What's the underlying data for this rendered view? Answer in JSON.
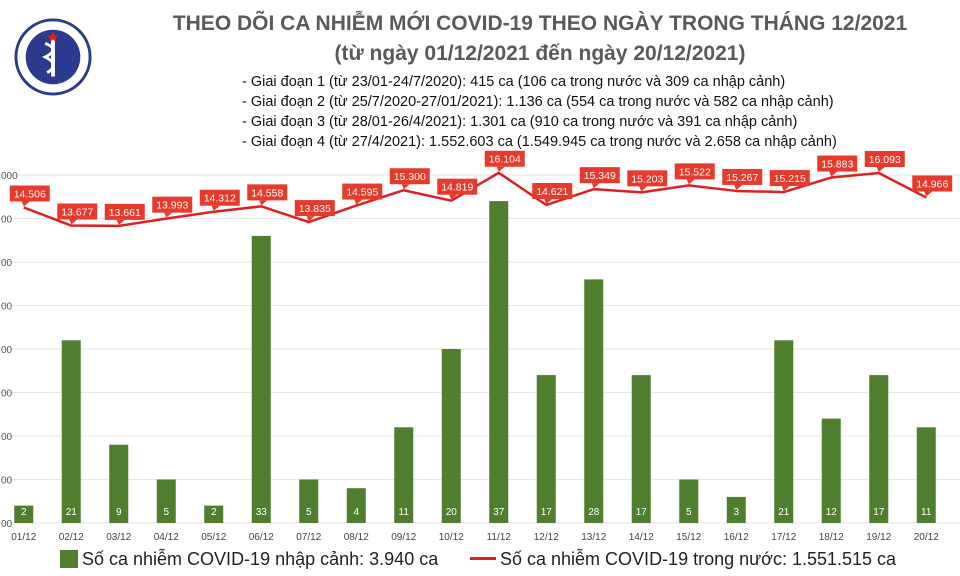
{
  "header": {
    "title": "THEO DÕI CA NHIỄM MỚI COVID-19 THEO NGÀY TRONG THÁNG 12/2021",
    "subtitle": "(từ ngày 01/12/2021 đến ngày 20/12/2021)"
  },
  "phases": [
    "- Giai đoạn 1 (từ 23/01-24/7/2020): 415 ca (106 ca trong nước và 309 ca nhập cảnh)",
    "- Giai đoạn 2 (từ 25/7/2020-27/01/2021): 1.136 ca (554 ca trong nước và 582 ca nhập cảnh)",
    "- Giai đoạn 3 (từ 28/01-26/4/2021): 1.301 ca (910 ca trong nước và 391 ca nhập cảnh)",
    "- Giai đoạn 4 (từ 27/4/2021): 1.552.603 ca (1.549.945 ca trong nước và 2.658 ca nhập cảnh)"
  ],
  "logo": {
    "text": "BỘ Y TẾ · MINISTRY OF HEALTH",
    "color": "#2b3a8c"
  },
  "legend": {
    "import_label": "Số ca nhiễm COVID-19 nhập cảnh: 3.940 ca",
    "domestic_label": "Số ca nhiễm COVID-19 trong nước: 1.551.515 ca"
  },
  "colors": {
    "bar": "#4f7f2e",
    "line": "#e02020",
    "label_box": "#e53a2c"
  },
  "chart_data": {
    "type": "bar",
    "categories": [
      "01/12",
      "02/12",
      "03/12",
      "04/12",
      "05/12",
      "06/12",
      "07/12",
      "08/12",
      "09/12",
      "10/12",
      "11/12",
      "12/12",
      "13/12",
      "14/12",
      "15/12",
      "16/12",
      "17/12",
      "18/12",
      "19/12",
      "20/12"
    ],
    "series": [
      {
        "name": "Số ca nhiễm COVID-19 nhập cảnh: 3.940 ca",
        "type": "bar",
        "values": [
          2,
          21,
          9,
          5,
          2,
          33,
          5,
          4,
          11,
          20,
          37,
          17,
          28,
          17,
          5,
          3,
          21,
          12,
          17,
          11
        ],
        "labels": [
          "2",
          "21",
          "9",
          "5",
          "2",
          "33",
          "5",
          "4",
          "11",
          "20",
          "37",
          "17",
          "28",
          "17",
          "5",
          "3",
          "21",
          "12",
          "17",
          "11"
        ]
      },
      {
        "name": "Số ca nhiễm COVID-19 trong nước: 1.551.515 ca",
        "type": "line",
        "values": [
          14506,
          13677,
          13661,
          13993,
          14312,
          14558,
          13835,
          14595,
          15300,
          14819,
          16104,
          14621,
          15349,
          15203,
          15522,
          15267,
          15215,
          15883,
          16093,
          14966
        ],
        "labels": [
          "14.506",
          "13.677",
          "13.661",
          "13.993",
          "14.312",
          "14.558",
          "13.835",
          "14.595",
          "15.300",
          "14.819",
          "16.104",
          "14.621",
          "15.349",
          "15.203",
          "15.522",
          "15.267",
          "15.215",
          "15.883",
          "16.093",
          "14.966"
        ]
      }
    ],
    "ylim_bar": [
      0,
      40
    ],
    "ylim_line": [
      0,
      16000
    ],
    "y_tick_labels": [
      "00",
      "00",
      "00",
      "00",
      "00",
      "00",
      "00",
      "00",
      "000"
    ],
    "grid": true,
    "legend_position": "bottom"
  }
}
